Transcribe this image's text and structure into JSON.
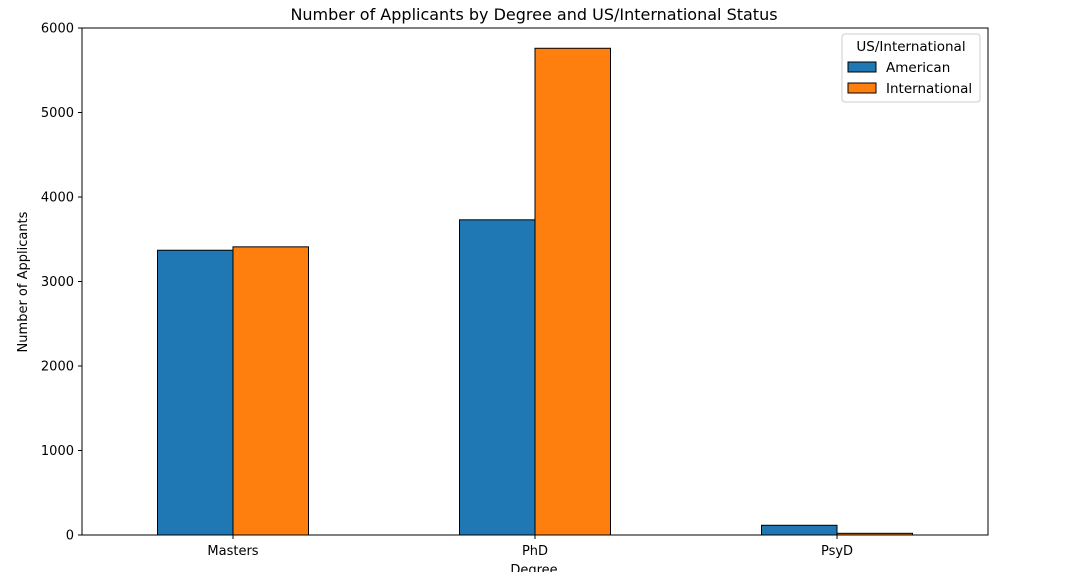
{
  "chart_data": {
    "type": "bar",
    "title": "Number of Applicants by Degree and US/International Status",
    "xlabel": "Degree",
    "ylabel": "Number of Applicants",
    "categories": [
      "Masters",
      "PhD",
      "PsyD"
    ],
    "series": [
      {
        "name": "American",
        "values": [
          3370,
          3730,
          115
        ],
        "color": "#1f77b4"
      },
      {
        "name": "International",
        "values": [
          3410,
          5760,
          20
        ],
        "color": "#ff7f0e"
      }
    ],
    "ylim": [
      0,
      6000
    ],
    "yticks": [
      0,
      1000,
      2000,
      3000,
      4000,
      5000,
      6000
    ],
    "grid": false,
    "legend": {
      "title": "US/International",
      "placement": "top-right"
    }
  }
}
